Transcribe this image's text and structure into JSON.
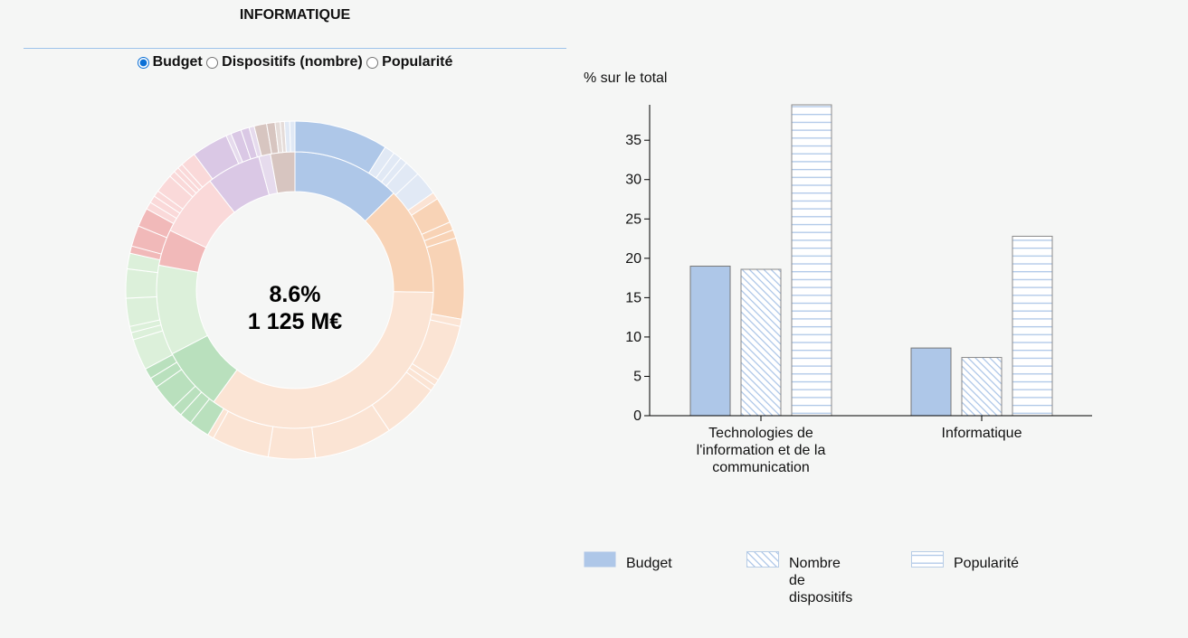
{
  "header": {
    "title": "INFORMATIQUE"
  },
  "selector": {
    "options": [
      {
        "label": "Budget",
        "checked": true
      },
      {
        "label": "Dispositifs (nombre)",
        "checked": false
      },
      {
        "label": "Popularité",
        "checked": false
      }
    ]
  },
  "donut": {
    "center_pct": "8.6%",
    "center_amount": "1 125 M€",
    "highlight_color": "#fbe3d4",
    "inner_ring": [
      {
        "value": 12.0,
        "color": "#aec7e8"
      },
      {
        "value": 12.0,
        "color": "#f8d3b6"
      },
      {
        "value": 33.0,
        "color": "#fbe4d4"
      },
      {
        "value": 7.0,
        "color": "#b9e0bd"
      },
      {
        "value": 10.0,
        "color": "#dcf0da"
      },
      {
        "value": 4.0,
        "color": "#f1b9b9"
      },
      {
        "value": 7.0,
        "color": "#fad9d9"
      },
      {
        "value": 6.0,
        "color": "#dac8e5"
      },
      {
        "value": 1.3,
        "color": "#e6dbed"
      },
      {
        "value": 2.7,
        "color": "#d7c5c0"
      }
    ],
    "outer_ring": [
      {
        "value": 9.0,
        "color": "#aec7e8"
      },
      {
        "value": 1.0,
        "color": "#e1e9f5"
      },
      {
        "value": 0.8,
        "color": "#e1e9f5"
      },
      {
        "value": 0.7,
        "color": "#e1e9f5"
      },
      {
        "value": 1.5,
        "color": "#e1e9f5"
      },
      {
        "value": 2.3,
        "color": "#e1e9f5"
      },
      {
        "value": 0.7,
        "color": "#fbe3d4"
      },
      {
        "value": 2.5,
        "color": "#f8d3b6"
      },
      {
        "value": 0.8,
        "color": "#f8d3b6"
      },
      {
        "value": 0.8,
        "color": "#f8d3b6"
      },
      {
        "value": 7.8,
        "color": "#f8d3b6"
      },
      {
        "value": 0.7,
        "color": "#fbe4d4"
      },
      {
        "value": 5.5,
        "color": "#fbe4d4"
      },
      {
        "value": 0.6,
        "color": "#fbe4d4"
      },
      {
        "value": 0.6,
        "color": "#fbe4d4"
      },
      {
        "value": 5.5,
        "color": "#fbe4d4"
      },
      {
        "value": 7.5,
        "color": "#fbe4d4"
      },
      {
        "value": 4.5,
        "color": "#fbe4d4"
      },
      {
        "value": 5.5,
        "color": "#fbe4d4"
      },
      {
        "value": 0.6,
        "color": "#fbe4d4"
      },
      {
        "value": 2.0,
        "color": "#b9e0bd"
      },
      {
        "value": 1.2,
        "color": "#b9e0bd"
      },
      {
        "value": 1.0,
        "color": "#b9e0bd"
      },
      {
        "value": 2.5,
        "color": "#b9e0bd"
      },
      {
        "value": 1.0,
        "color": "#b9e0bd"
      },
      {
        "value": 1.0,
        "color": "#b9e0bd"
      },
      {
        "value": 3.0,
        "color": "#dcf0da"
      },
      {
        "value": 0.7,
        "color": "#dcf0da"
      },
      {
        "value": 0.6,
        "color": "#dcf0da"
      },
      {
        "value": 2.7,
        "color": "#dcf0da"
      },
      {
        "value": 2.8,
        "color": "#dcf0da"
      },
      {
        "value": 1.5,
        "color": "#dcf0da"
      },
      {
        "value": 0.7,
        "color": "#f1b9b9"
      },
      {
        "value": 2.0,
        "color": "#f1b9b9"
      },
      {
        "value": 1.8,
        "color": "#f1b9b9"
      },
      {
        "value": 0.7,
        "color": "#fad9d9"
      },
      {
        "value": 0.7,
        "color": "#fad9d9"
      },
      {
        "value": 0.6,
        "color": "#fad9d9"
      },
      {
        "value": 1.8,
        "color": "#fad9d9"
      },
      {
        "value": 0.6,
        "color": "#fad9d9"
      },
      {
        "value": 0.5,
        "color": "#fad9d9"
      },
      {
        "value": 0.5,
        "color": "#fad9d9"
      },
      {
        "value": 1.5,
        "color": "#fad9d9"
      },
      {
        "value": 3.5,
        "color": "#dac8e5"
      },
      {
        "value": 0.5,
        "color": "#e6dbed"
      },
      {
        "value": 1.0,
        "color": "#dac8e5"
      },
      {
        "value": 0.8,
        "color": "#dac8e5"
      },
      {
        "value": 0.5,
        "color": "#e6dbed"
      },
      {
        "value": 1.2,
        "color": "#d7c5c0"
      },
      {
        "value": 0.8,
        "color": "#d7c5c0"
      },
      {
        "value": 0.5,
        "color": "#e5dcd9"
      },
      {
        "value": 0.4,
        "color": "#e5dcd9"
      },
      {
        "value": 0.5,
        "color": "#e1e9f5"
      },
      {
        "value": 0.5,
        "color": "#e1e9f5"
      }
    ]
  },
  "chart_data": {
    "type": "bar",
    "ylabel": "% sur le total",
    "ylim": [
      0,
      39.5
    ],
    "yticks": [
      0,
      5,
      10,
      15,
      20,
      25,
      30,
      35
    ],
    "categories": [
      "Technologies de l'information et de la communication",
      "Informatique"
    ],
    "category_label_lines": [
      [
        "Technologies de",
        "l'information et de la",
        "communication"
      ],
      [
        "Informatique"
      ]
    ],
    "series": [
      {
        "name": "Budget",
        "values": [
          19.0,
          8.6
        ],
        "pattern": "solid",
        "color": "#aec7e8"
      },
      {
        "name": "Nombre de dispositifs",
        "values": [
          18.6,
          7.4
        ],
        "pattern": "diagonal",
        "color": "#aec7e8"
      },
      {
        "name": "Popularité",
        "values": [
          39.5,
          22.8
        ],
        "pattern": "horizontal",
        "color": "#aec7e8"
      }
    ],
    "legend": {
      "placement": "bottom",
      "items": [
        {
          "label_lines": [
            "Budget"
          ]
        },
        {
          "label_lines": [
            "Nombre",
            "de",
            "dispositifs"
          ]
        },
        {
          "label_lines": [
            "Popularité"
          ]
        }
      ]
    }
  }
}
